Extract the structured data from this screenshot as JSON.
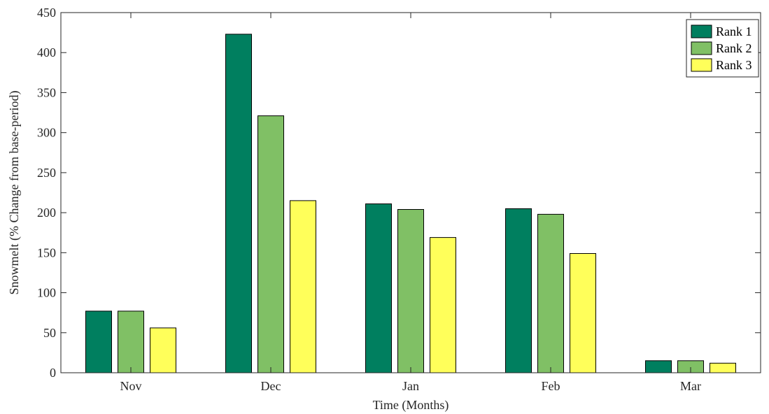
{
  "chart_data": {
    "type": "bar",
    "title": "",
    "xlabel": "Time (Months)",
    "ylabel": "Snowmelt (% Change from base-period)",
    "categories": [
      "Nov",
      "Dec",
      "Jan",
      "Feb",
      "Mar"
    ],
    "ylim": [
      0,
      450
    ],
    "yticks": [
      0,
      50,
      100,
      150,
      200,
      250,
      300,
      350,
      400,
      450
    ],
    "grid": false,
    "legend_position": "top-right",
    "series": [
      {
        "name": "Rank 1",
        "color": "#007f5f",
        "values": [
          77,
          423,
          211,
          205,
          15
        ]
      },
      {
        "name": "Rank 2",
        "color": "#80c065",
        "values": [
          77,
          321,
          204,
          198,
          15
        ]
      },
      {
        "name": "Rank 3",
        "color": "#ffff5a",
        "values": [
          56,
          215,
          169,
          149,
          12
        ]
      }
    ]
  }
}
